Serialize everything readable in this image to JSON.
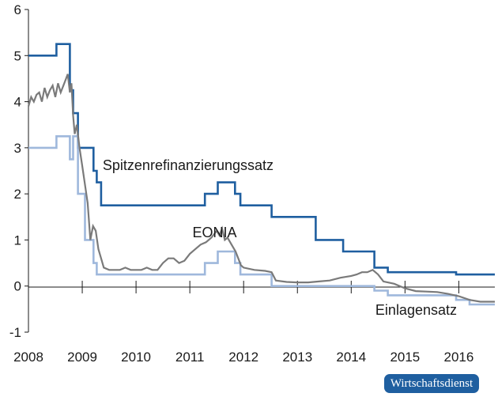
{
  "chart_data": {
    "type": "line",
    "title": "",
    "xlabel": "",
    "ylabel": "",
    "xlim": [
      2008,
      2016.67
    ],
    "ylim": [
      -1,
      6
    ],
    "grid": false,
    "x_ticks": [
      "2008",
      "2009",
      "2010",
      "2011",
      "2012",
      "2013",
      "2014",
      "2015",
      "2016"
    ],
    "y_ticks": [
      "-1",
      "0",
      "1",
      "2",
      "3",
      "4",
      "5",
      "6"
    ],
    "series": [
      {
        "name": "Spitzenrefinanzierungssatz",
        "color": "#1f5fa0",
        "step": true,
        "x": [
          2008.0,
          2008.52,
          2008.77,
          2008.83,
          2008.92,
          2009.21,
          2009.27,
          2009.35,
          2011.28,
          2011.52,
          2011.84,
          2011.94,
          2012.52,
          2013.34,
          2013.85,
          2014.43,
          2014.68,
          2015.95,
          2016.67
        ],
        "values": [
          5.0,
          5.25,
          4.25,
          3.75,
          3.0,
          2.5,
          2.25,
          1.75,
          2.0,
          2.25,
          2.0,
          1.75,
          1.5,
          1.0,
          0.75,
          0.4,
          0.3,
          0.25,
          0.25
        ],
        "label_x": 2009.38,
        "label_y": 2.52
      },
      {
        "name": "Einlagensatz",
        "color": "#9fb8dc",
        "step": true,
        "x": [
          2008.0,
          2008.52,
          2008.77,
          2008.83,
          2008.92,
          2009.05,
          2009.21,
          2009.27,
          2011.28,
          2011.52,
          2011.84,
          2011.94,
          2012.52,
          2014.43,
          2014.68,
          2015.95,
          2016.2,
          2016.67
        ],
        "values": [
          3.0,
          3.25,
          2.75,
          3.25,
          2.0,
          1.0,
          0.5,
          0.25,
          0.5,
          0.75,
          0.5,
          0.25,
          0.0,
          -0.1,
          -0.2,
          -0.3,
          -0.4,
          -0.4
        ],
        "label_x": 2014.45,
        "label_y": -0.62
      },
      {
        "name": "EONIA",
        "color": "#7a7a7a",
        "step": false,
        "x": [
          2008.0,
          2008.05,
          2008.1,
          2008.15,
          2008.2,
          2008.25,
          2008.3,
          2008.35,
          2008.4,
          2008.45,
          2008.5,
          2008.55,
          2008.6,
          2008.65,
          2008.7,
          2008.73,
          2008.77,
          2008.8,
          2008.83,
          2008.86,
          2008.9,
          2008.95,
          2009.0,
          2009.05,
          2009.1,
          2009.15,
          2009.2,
          2009.25,
          2009.3,
          2009.35,
          2009.4,
          2009.5,
          2009.6,
          2009.7,
          2009.8,
          2009.9,
          2010.0,
          2010.1,
          2010.2,
          2010.3,
          2010.4,
          2010.5,
          2010.6,
          2010.7,
          2010.8,
          2010.9,
          2011.0,
          2011.1,
          2011.2,
          2011.3,
          2011.4,
          2011.5,
          2011.55,
          2011.6,
          2011.65,
          2011.7,
          2011.75,
          2011.8,
          2011.85,
          2011.9,
          2011.95,
          2012.0,
          2012.2,
          2012.4,
          2012.52,
          2012.6,
          2012.8,
          2013.0,
          2013.2,
          2013.4,
          2013.6,
          2013.8,
          2014.0,
          2014.1,
          2014.2,
          2014.3,
          2014.4,
          2014.5,
          2014.6,
          2014.8,
          2015.0,
          2015.2,
          2015.4,
          2015.6,
          2015.8,
          2016.0,
          2016.2,
          2016.4,
          2016.67
        ],
        "values": [
          3.9,
          4.1,
          4.0,
          4.15,
          4.2,
          4.0,
          4.3,
          4.1,
          4.25,
          4.35,
          4.1,
          4.4,
          4.2,
          4.35,
          4.5,
          4.6,
          4.2,
          4.4,
          3.7,
          3.3,
          3.5,
          3.0,
          2.6,
          2.2,
          1.8,
          1.0,
          1.3,
          1.2,
          0.8,
          0.6,
          0.4,
          0.35,
          0.35,
          0.35,
          0.4,
          0.35,
          0.35,
          0.35,
          0.4,
          0.35,
          0.35,
          0.5,
          0.6,
          0.6,
          0.5,
          0.55,
          0.7,
          0.8,
          0.9,
          0.95,
          1.05,
          1.2,
          1.1,
          1.25,
          1.0,
          1.05,
          0.95,
          0.85,
          0.75,
          0.6,
          0.45,
          0.4,
          0.35,
          0.33,
          0.3,
          0.12,
          0.09,
          0.08,
          0.08,
          0.1,
          0.12,
          0.18,
          0.22,
          0.25,
          0.3,
          0.3,
          0.35,
          0.25,
          0.1,
          0.05,
          -0.05,
          -0.11,
          -0.12,
          -0.13,
          -0.17,
          -0.22,
          -0.3,
          -0.34,
          -0.34
        ],
        "label_x": 2011.05,
        "label_y": 1.06
      }
    ]
  },
  "badge": {
    "text": "Wirtschaftsdienst"
  }
}
